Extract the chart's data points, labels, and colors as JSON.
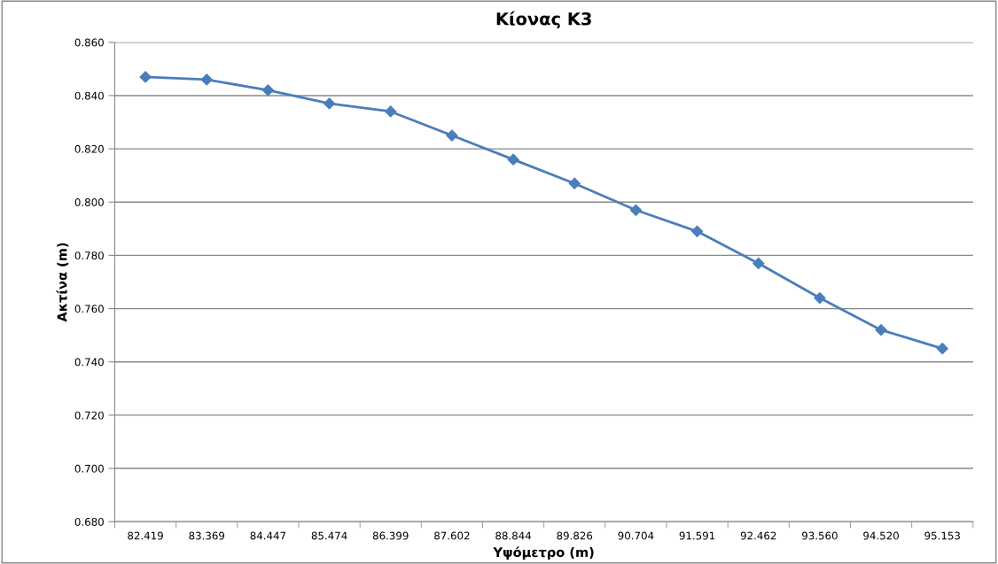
{
  "chart_data": {
    "type": "line",
    "title": "Κίονας Κ3",
    "xlabel": "Υψόμετρο (m)",
    "ylabel": "Ακτίνα (m)",
    "categories": [
      "82.419",
      "83.369",
      "84.447",
      "85.474",
      "86.399",
      "87.602",
      "88.844",
      "89.826",
      "90.704",
      "91.591",
      "92.462",
      "93.560",
      "94.520",
      "95.153"
    ],
    "series": [
      {
        "color": "#4a7ebb",
        "values": [
          0.847,
          0.846,
          0.842,
          0.837,
          0.834,
          0.825,
          0.816,
          0.807,
          0.797,
          0.789,
          0.777,
          0.764,
          0.752,
          0.745
        ]
      }
    ],
    "ylim": [
      0.68,
      0.86
    ],
    "yticks": [
      {
        "value": 0.68,
        "label": "0.680"
      },
      {
        "value": 0.7,
        "label": "0.700"
      },
      {
        "value": 0.72,
        "label": "0.720"
      },
      {
        "value": 0.74,
        "label": "0.740"
      },
      {
        "value": 0.76,
        "label": "0.760"
      },
      {
        "value": 0.78,
        "label": "0.780"
      },
      {
        "value": 0.8,
        "label": "0.800"
      },
      {
        "value": 0.82,
        "label": "0.820"
      },
      {
        "value": 0.84,
        "label": "0.840"
      },
      {
        "value": 0.86,
        "label": "0.860"
      }
    ],
    "grid": "y",
    "marker": "diamond",
    "line_style": "solid",
    "legend": false
  }
}
